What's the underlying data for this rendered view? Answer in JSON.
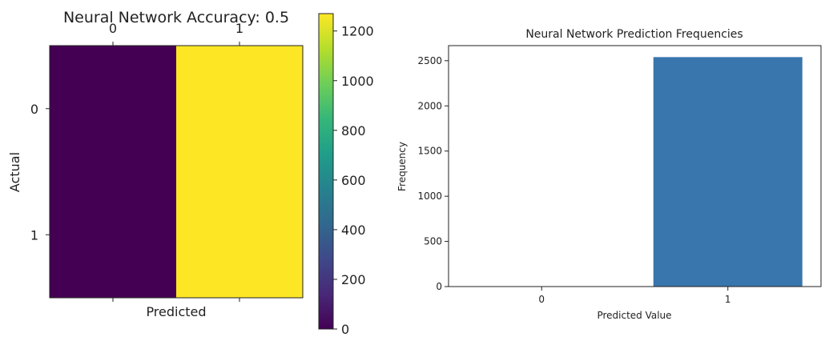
{
  "chart_data": [
    {
      "type": "heatmap",
      "title": "Neural Network Accuracy: 0.5",
      "xlabel": "Predicted",
      "ylabel": "Actual",
      "x_categories": [
        "0",
        "1"
      ],
      "y_categories": [
        "0",
        "1"
      ],
      "values": [
        [
          0,
          1270
        ],
        [
          0,
          1270
        ]
      ],
      "colorbar": {
        "min": 0,
        "max": 1270,
        "ticks": [
          0,
          200,
          400,
          600,
          800,
          1000,
          1200
        ],
        "colormap": [
          "#440154",
          "#482878",
          "#3e4989",
          "#31688e",
          "#26828e",
          "#1f9e89",
          "#35b779",
          "#6ece58",
          "#b5de2b",
          "#fde725"
        ]
      }
    },
    {
      "type": "bar",
      "title": "Neural Network Prediction Frequencies",
      "xlabel": "Predicted Value",
      "ylabel": "Frequency",
      "categories": [
        "0",
        "1"
      ],
      "values": [
        0,
        2540
      ],
      "ylim": [
        0,
        2667
      ],
      "yticks": [
        0,
        500,
        1000,
        1500,
        2000,
        2500
      ],
      "bar_color": "#3a76ae"
    }
  ]
}
